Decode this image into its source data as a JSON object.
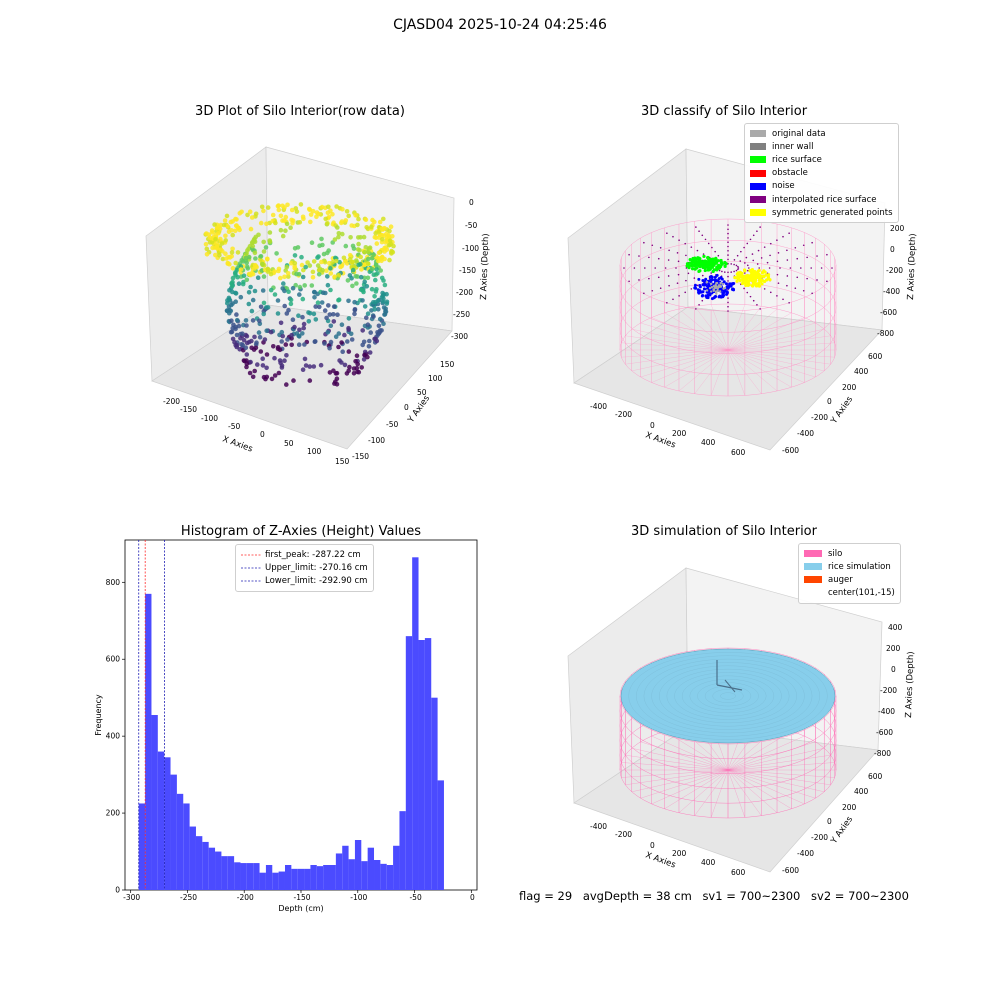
{
  "figure": {
    "suptitle": "CJASD04 2025-10-24 04:25:46",
    "status": {
      "flag": "flag = 29",
      "avg_depth": "avgDepth = 38 cm",
      "sv1": "sv1 = 700~2300",
      "sv2": "sv2 = 700~2300"
    }
  },
  "colors": {
    "hist_bar": "#4b4bff",
    "first_peak": "#ff2a2a",
    "limits": "#1f1fb4",
    "silo": "#ff69b4",
    "rice_simulation": "#87ceeb",
    "auger": "#ff4500"
  },
  "chart_data": [
    {
      "type": "scatter",
      "projection": "3d",
      "title": "3D Plot of Silo Interior(row data)",
      "xlabel": "X Axies",
      "ylabel": "Y Axies",
      "zlabel": "Z Axies (Depth)",
      "x_ticks": [
        "-200",
        "-150",
        "-100",
        "-50",
        "0",
        "50",
        "100",
        "150"
      ],
      "y_ticks": [
        "-150",
        "-100",
        "-50",
        "0",
        "50",
        "100",
        "150"
      ],
      "z_ticks": [
        "0",
        "-50",
        "-100",
        "-150",
        "-200",
        "-250",
        "-300"
      ],
      "xlim": [
        -220,
        160
      ],
      "ylim": [
        -160,
        170
      ],
      "zlim": [
        -310,
        0
      ],
      "colormap": "viridis (by depth)",
      "grid": true
    },
    {
      "type": "scatter",
      "projection": "3d",
      "title": "3D classify of Silo Interior",
      "xlabel": "X Axies",
      "ylabel": "Y Axies",
      "zlabel": "Z Axies (Depth)",
      "x_ticks": [
        "-400",
        "-200",
        "0",
        "200",
        "400",
        "600"
      ],
      "y_ticks": [
        "-600",
        "-400",
        "-200",
        "0",
        "200",
        "400",
        "600"
      ],
      "z_ticks": [
        "200",
        "0",
        "-200",
        "-400",
        "-600",
        "-800"
      ],
      "legend_position": "top-right",
      "legend": [
        {
          "label": "original data",
          "color": "#aaaaaa"
        },
        {
          "label": "inner wall",
          "color": "#808080"
        },
        {
          "label": "rice surface",
          "color": "#00ff00"
        },
        {
          "label": "obstacle",
          "color": "#ff0000"
        },
        {
          "label": "noise",
          "color": "#0000ff"
        },
        {
          "label": "interpolated rice surface",
          "color": "#800080"
        },
        {
          "label": "symmetric generated points",
          "color": "#ffff00"
        }
      ],
      "grid": true
    },
    {
      "type": "bar",
      "title": "Histogram of Z-Axies (Height) Values",
      "xlabel": "Depth (cm)",
      "ylabel": "Frequency",
      "xlim": [
        -305,
        5
      ],
      "ylim": [
        0,
        910
      ],
      "x_ticks": [
        "-300",
        "-250",
        "-200",
        "-150",
        "-100",
        "-50",
        "0"
      ],
      "y_ticks": [
        "0",
        "200",
        "400",
        "600",
        "800"
      ],
      "bin_start": -292.9,
      "bin_width": 5.6,
      "values": [
        225,
        770,
        455,
        360,
        345,
        300,
        250,
        225,
        165,
        140,
        125,
        110,
        100,
        88,
        88,
        72,
        70,
        70,
        70,
        45,
        65,
        45,
        48,
        65,
        55,
        55,
        55,
        65,
        62,
        65,
        65,
        95,
        115,
        80,
        130,
        75,
        110,
        78,
        68,
        65,
        115,
        205,
        660,
        865,
        650,
        655,
        500,
        285
      ],
      "vlines": [
        {
          "label": "first_peak: -287.22 cm",
          "x": -287.22,
          "style": "dashed",
          "color": "#ff2a2a"
        },
        {
          "label": "Upper_limit: -270.16 cm",
          "x": -270.16,
          "style": "dashed",
          "color": "#1f1fb4"
        },
        {
          "label": "Lower_limit: -292.90 cm",
          "x": -292.9,
          "style": "dashed",
          "color": "#1f1fb4"
        }
      ],
      "legend_position": "top-center"
    },
    {
      "type": "scatter",
      "projection": "3d",
      "title": "3D simulation of Silo Interior",
      "xlabel": "X Axies",
      "ylabel": "Y Axies",
      "zlabel": "Z Axies (Depth)",
      "x_ticks": [
        "-400",
        "-200",
        "0",
        "200",
        "400",
        "600"
      ],
      "y_ticks": [
        "-600",
        "-400",
        "-200",
        "0",
        "200",
        "400",
        "600"
      ],
      "z_ticks": [
        "400",
        "200",
        "0",
        "-200",
        "-400",
        "-600",
        "-800"
      ],
      "legend_position": "top-right",
      "legend": [
        {
          "label": "silo",
          "color": "#ff69b4"
        },
        {
          "label": "rice simulation",
          "color": "#87ceeb"
        },
        {
          "label": "auger",
          "color": "#ff4500"
        },
        {
          "label": "center(101,-15)",
          "color": ""
        }
      ],
      "grid": true
    }
  ]
}
